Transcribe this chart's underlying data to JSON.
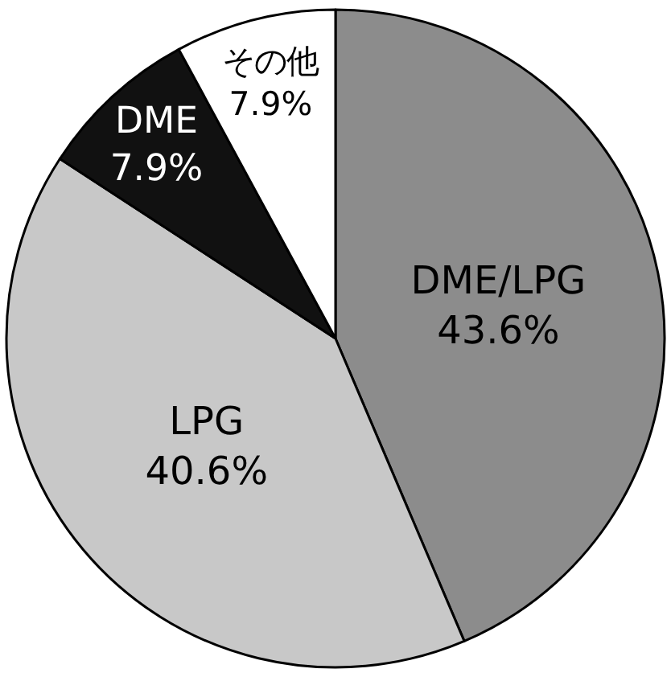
{
  "chart_data": {
    "type": "pie",
    "categories": [
      "DME/LPG",
      "LPG",
      "DME",
      "その他"
    ],
    "values": [
      43.6,
      40.6,
      7.9,
      7.9
    ],
    "value_labels": [
      "43.6%",
      "40.6%",
      "7.9%",
      "7.9%"
    ],
    "colors": [
      "#8c8c8c",
      "#c8c8c8",
      "#111111",
      "#ffffff"
    ],
    "legend": false
  }
}
